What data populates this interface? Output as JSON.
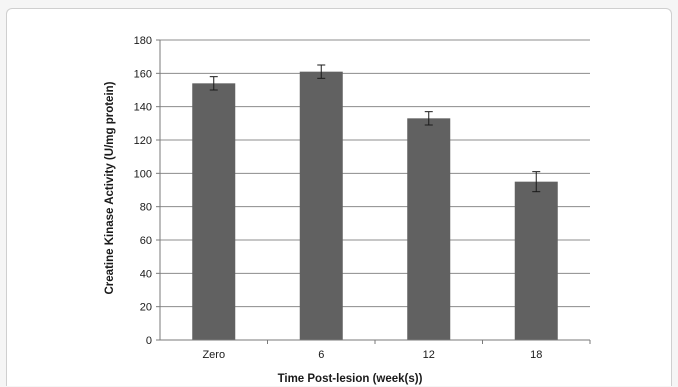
{
  "chart_data": {
    "type": "bar",
    "title": "",
    "xlabel": "Time Post-lesion (week(s))",
    "ylabel": "Creatine Kinase Activity (U/mg protein)",
    "categories": [
      "Zero",
      "6",
      "12",
      "18"
    ],
    "values": [
      154,
      161,
      133,
      95
    ],
    "error_bars": [
      4,
      4,
      4,
      6
    ],
    "ylim": [
      0,
      180
    ],
    "yticks": [
      0,
      20,
      40,
      60,
      80,
      100,
      120,
      140,
      160,
      180
    ],
    "grid": true,
    "colors": {
      "bar": "#616161",
      "grid": "#8c8c8c",
      "axis": "#7a7a7a",
      "error": "#1a1a1a"
    }
  }
}
